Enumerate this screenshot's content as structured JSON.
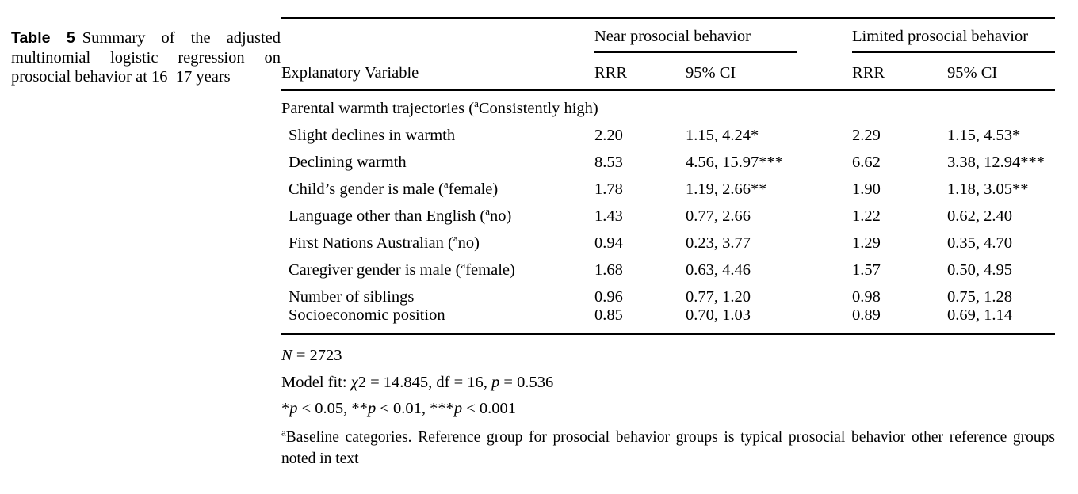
{
  "caption": {
    "label": "Table 5",
    "text": "Summary of the adjusted multinomial logistic regression on prosocial behavior at 16–17 years"
  },
  "table": {
    "groups": {
      "near": "Near prosocial behavior",
      "limited": "Limited prosocial behavior"
    },
    "columns": {
      "explanatory": "Explanatory Variable",
      "rrr_near": "RRR",
      "ci_near": "95% CI",
      "rrr_limited": "RRR",
      "ci_limited": "95% CI"
    },
    "section_header": {
      "pre": "Parental warmth trajectories (",
      "sup": "a",
      "post": "Consistently high)"
    },
    "rows": [
      {
        "pre": "Slight declines in warmth",
        "sup": "",
        "post": "",
        "near_rrr": "2.20",
        "near_ci": "1.15, 4.24*",
        "limited_rrr": "2.29",
        "limited_ci": "1.15, 4.53*"
      },
      {
        "pre": "Declining warmth",
        "sup": "",
        "post": "",
        "near_rrr": "8.53",
        "near_ci": "4.56, 15.97***",
        "limited_rrr": "6.62",
        "limited_ci": "3.38, 12.94***"
      },
      {
        "pre": "Child’s gender is male (",
        "sup": "a",
        "post": "female)",
        "near_rrr": "1.78",
        "near_ci": "1.19, 2.66**",
        "limited_rrr": "1.90",
        "limited_ci": "1.18, 3.05**"
      },
      {
        "pre": "Language other than English (",
        "sup": "a",
        "post": "no)",
        "near_rrr": "1.43",
        "near_ci": "0.77, 2.66",
        "limited_rrr": "1.22",
        "limited_ci": "0.62, 2.40"
      },
      {
        "pre": "First Nations Australian (",
        "sup": "a",
        "post": "no)",
        "near_rrr": "0.94",
        "near_ci": "0.23, 3.77",
        "limited_rrr": "1.29",
        "limited_ci": "0.35, 4.70"
      },
      {
        "pre": "Caregiver gender is male (",
        "sup": "a",
        "post": "female)",
        "near_rrr": "1.68",
        "near_ci": "0.63, 4.46",
        "limited_rrr": "1.57",
        "limited_ci": "0.50, 4.95"
      },
      {
        "pre": "Number of siblings",
        "sup": "",
        "post": "",
        "near_rrr": "0.96",
        "near_ci": "0.77, 1.20",
        "limited_rrr": "0.98",
        "limited_ci": "0.75, 1.28"
      },
      {
        "pre": "Socioeconomic position",
        "sup": "",
        "post": "",
        "near_rrr": "0.85",
        "near_ci": "0.70, 1.03",
        "limited_rrr": "0.89",
        "limited_ci": "0.69, 1.14"
      }
    ]
  },
  "notes": {
    "n": {
      "parts": [
        "N",
        " = 2723"
      ]
    },
    "fit": {
      "parts": [
        "Model fit: ",
        "χ",
        "2 = 14.845, df = 16, ",
        "p",
        " = 0.536"
      ]
    },
    "sig": {
      "parts": [
        "*",
        "p",
        " < 0.05, **",
        "p",
        " < 0.01, ***",
        "p",
        " < 0.001"
      ]
    },
    "footnote": {
      "sup": "a",
      "text": "Baseline categories. Reference group for prosocial behavior groups is typical prosocial behavior other reference groups noted in text"
    }
  }
}
